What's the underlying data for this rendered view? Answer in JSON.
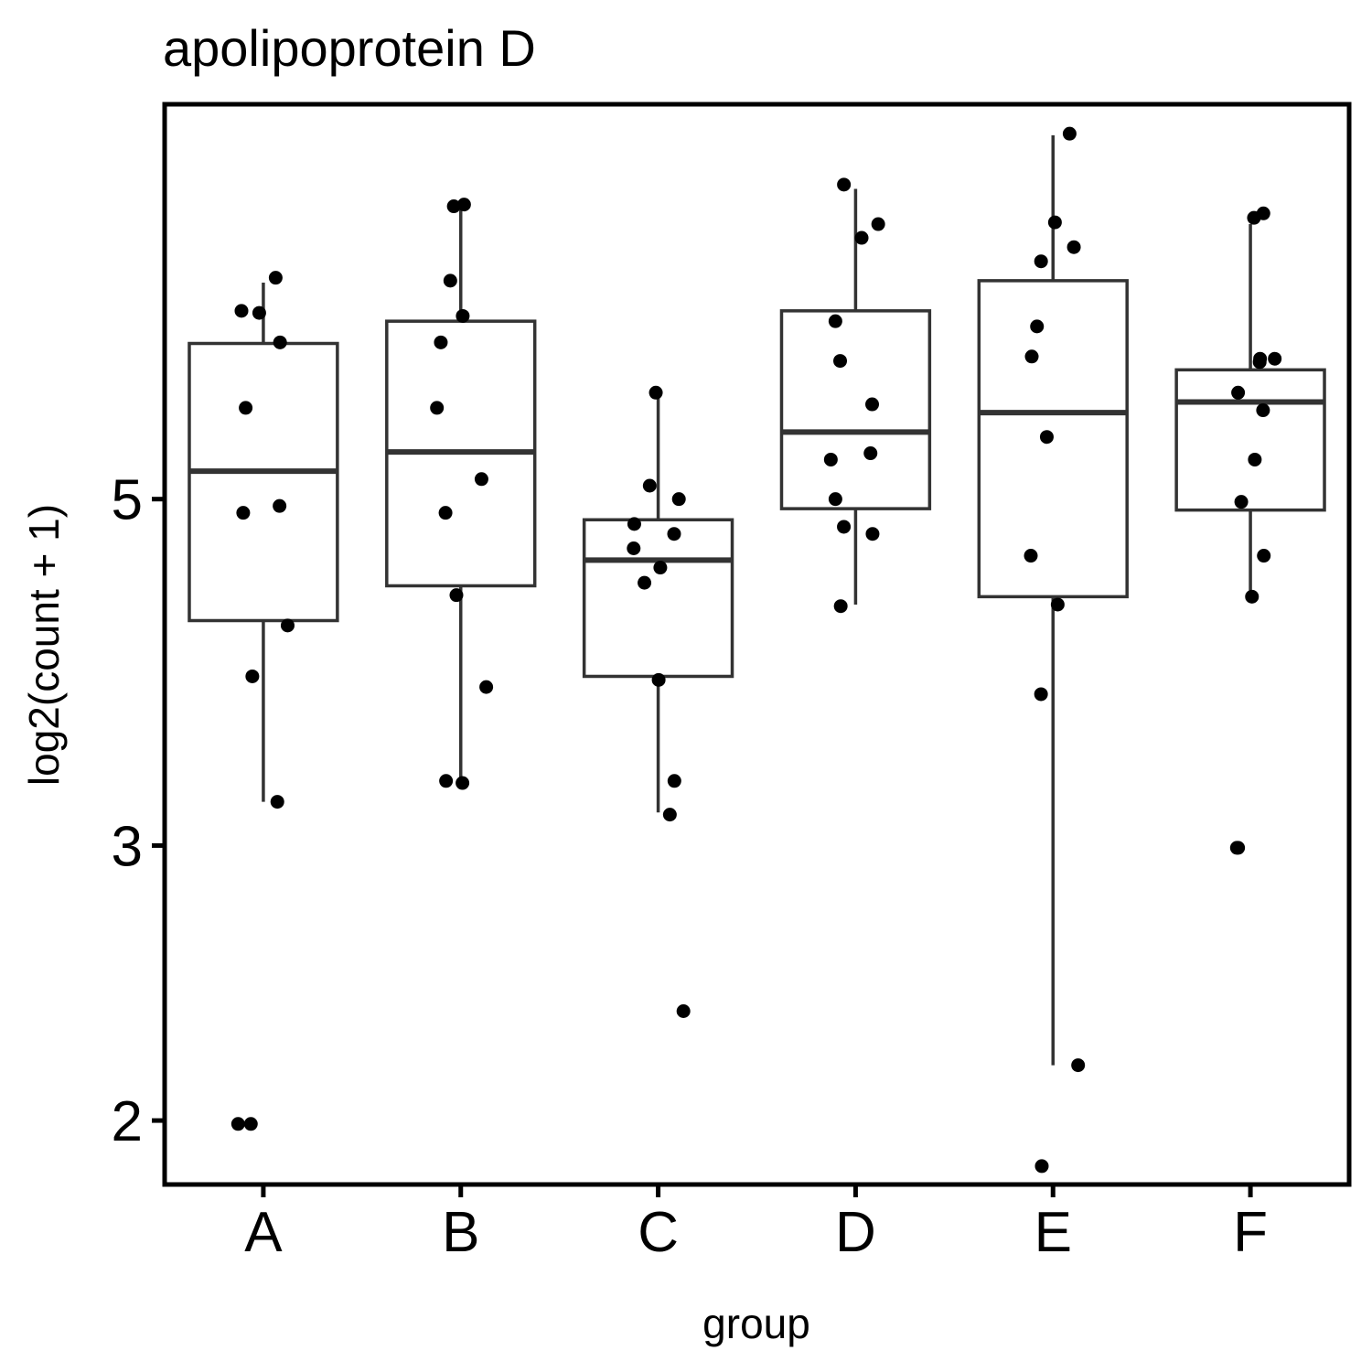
{
  "chart_data": {
    "type": "box",
    "title": "apolipoprotein D",
    "xlabel": "group",
    "ylabel": "log2(count + 1)",
    "y_scale": "log",
    "ylim": [
      1.82,
      8.95
    ],
    "y_ticks": [
      2,
      3,
      5
    ],
    "y_tick_labels": [
      "2",
      "3",
      "5"
    ],
    "categories": [
      "A",
      "B",
      "C",
      "D",
      "E",
      "F"
    ],
    "grid": false,
    "legend": "none",
    "boxes": [
      {
        "name": "A",
        "whisker_low": 3.2,
        "q1": 4.18,
        "median": 5.21,
        "q3": 6.29,
        "whisker_high": 6.88
      },
      {
        "name": "B",
        "whisker_low": 3.3,
        "q1": 4.4,
        "median": 5.36,
        "q3": 6.5,
        "whisker_high": 7.7
      },
      {
        "name": "C",
        "whisker_low": 3.15,
        "q1": 3.85,
        "median": 4.57,
        "q3": 4.85,
        "whisker_high": 5.82
      },
      {
        "name": "D",
        "whisker_low": 4.28,
        "q1": 4.93,
        "median": 5.52,
        "q3": 6.6,
        "whisker_high": 7.9
      },
      {
        "name": "E",
        "whisker_low": 2.17,
        "q1": 4.33,
        "median": 5.68,
        "q3": 6.9,
        "whisker_high": 8.55
      },
      {
        "name": "F",
        "whisker_low": 4.37,
        "q1": 4.92,
        "median": 5.77,
        "q3": 6.05,
        "whisker_high": 7.5
      }
    ],
    "points": [
      {
        "group": "A",
        "y": [
          6.93,
          6.6,
          6.58,
          6.3,
          5.72,
          4.95,
          4.9,
          4.15,
          3.85,
          3.2,
          1.99,
          1.99
        ]
      },
      {
        "group": "B",
        "y": [
          7.72,
          7.7,
          6.9,
          6.55,
          6.3,
          5.72,
          5.15,
          4.9,
          4.34,
          3.79,
          3.3,
          3.29
        ]
      },
      {
        "group": "C",
        "y": [
          5.85,
          5.1,
          5.0,
          4.82,
          4.75,
          4.65,
          4.52,
          4.42,
          3.83,
          3.3,
          3.14,
          2.35
        ]
      },
      {
        "group": "D",
        "y": [
          7.95,
          7.5,
          7.35,
          6.5,
          6.13,
          5.75,
          5.35,
          5.3,
          5.0,
          4.8,
          4.75,
          4.27
        ]
      },
      {
        "group": "E",
        "y": [
          8.57,
          7.52,
          7.25,
          7.1,
          6.45,
          6.17,
          5.48,
          4.6,
          4.28,
          3.75,
          2.17,
          1.87
        ]
      },
      {
        "group": "F",
        "y": [
          7.62,
          7.57,
          6.15,
          6.15,
          6.12,
          5.85,
          5.7,
          5.3,
          4.98,
          4.6,
          4.33,
          2.99,
          2.99
        ]
      }
    ]
  }
}
